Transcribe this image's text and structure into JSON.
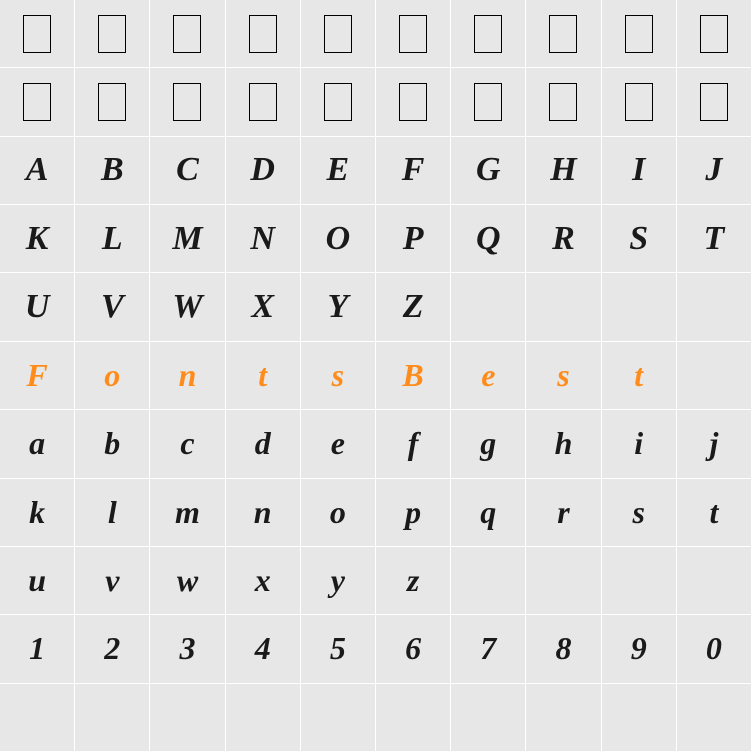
{
  "grid": {
    "cols": 10,
    "rows": 11,
    "bg_color": "#e7e7e7",
    "grid_line_color": "#ffffff",
    "accent_color": "#ff8c1a",
    "text_color": "#1a1a1a",
    "font_style": "italic-script",
    "font_size": 34,
    "cells": [
      [
        "□",
        "□",
        "□",
        "□",
        "□",
        "□",
        "□",
        "□",
        "□",
        "□"
      ],
      [
        "□",
        "□",
        "□",
        "□",
        "□",
        "□",
        "□",
        "□",
        "□",
        "□"
      ],
      [
        "A",
        "B",
        "C",
        "D",
        "E",
        "F",
        "G",
        "H",
        "I",
        "J"
      ],
      [
        "K",
        "L",
        "M",
        "N",
        "O",
        "P",
        "Q",
        "R",
        "S",
        "T"
      ],
      [
        "U",
        "V",
        "W",
        "X",
        "Y",
        "Z",
        "",
        "",
        "",
        ""
      ],
      [
        "F",
        "o",
        "n",
        "t",
        "s",
        "B",
        "e",
        "s",
        "t",
        ""
      ],
      [
        "a",
        "b",
        "c",
        "d",
        "e",
        "f",
        "g",
        "h",
        "i",
        "j"
      ],
      [
        "k",
        "l",
        "m",
        "n",
        "o",
        "p",
        "q",
        "r",
        "s",
        "t"
      ],
      [
        "u",
        "v",
        "w",
        "x",
        "y",
        "z",
        "",
        "",
        "",
        ""
      ],
      [
        "1",
        "2",
        "3",
        "4",
        "5",
        "6",
        "7",
        "8",
        "9",
        "0"
      ],
      [
        "",
        "",
        "",
        "",
        "",
        "",
        "",
        "",
        "",
        ""
      ]
    ],
    "row_types": [
      "glyphbox",
      "glyphbox",
      "upper",
      "upper",
      "upper",
      "accent",
      "lower",
      "lower",
      "lower",
      "num",
      "empty"
    ]
  }
}
